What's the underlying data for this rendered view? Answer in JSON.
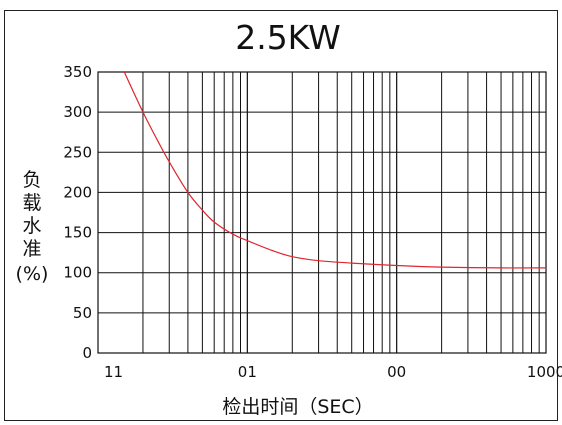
{
  "chart_data": {
    "type": "line",
    "title": "2.5KW",
    "xlabel": "检出时间（SEC）",
    "ylabel_chars": [
      "负",
      "载",
      "水",
      "准",
      "(%)"
    ],
    "x_scale": "log",
    "x_tick_labels": [
      "11",
      "01",
      "00",
      "1000"
    ],
    "xlim": [
      1,
      1000
    ],
    "y_ticks": [
      "0",
      "50",
      "100",
      "150",
      "200",
      "250",
      "300",
      "350"
    ],
    "ylim": [
      0,
      350
    ],
    "grid": true,
    "series": [
      {
        "color": "#e0262e",
        "x": [
          1.5,
          2,
          2.5,
          3,
          4,
          5,
          6,
          8,
          10,
          15,
          20,
          30,
          50,
          100,
          200,
          500,
          1000
        ],
        "y": [
          350,
          300,
          265,
          238,
          200,
          178,
          163,
          148,
          140,
          127,
          120,
          115,
          112,
          109,
          107,
          106,
          106
        ]
      }
    ]
  }
}
